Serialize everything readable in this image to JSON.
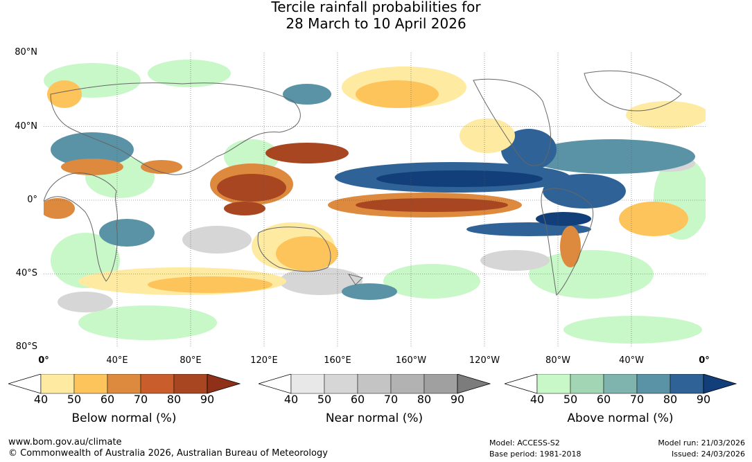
{
  "title": {
    "line1": "Tercile rainfall probabilities for",
    "line2": "28 March to 10 April 2026"
  },
  "map": {
    "lat_labels": [
      "80°N",
      "40°N",
      "0°",
      "40°S",
      "80°S"
    ],
    "lon_labels": [
      "0°",
      "40°E",
      "80°E",
      "120°E",
      "160°E",
      "160°W",
      "120°W",
      "80°W",
      "40°W",
      "0°"
    ]
  },
  "legends": {
    "below": {
      "title": "Below normal (%)",
      "ticks": [
        "40",
        "50",
        "60",
        "70",
        "80",
        "90"
      ],
      "colors": [
        "#ffffff",
        "#feeaa0",
        "#fec45c",
        "#dd8a3f",
        "#c95d2c",
        "#a94622",
        "#8f3118"
      ]
    },
    "near": {
      "title": "Near normal (%)",
      "ticks": [
        "40",
        "50",
        "60",
        "70",
        "80",
        "90"
      ],
      "colors": [
        "#ffffff",
        "#e8e8e8",
        "#d6d6d6",
        "#c4c4c4",
        "#b2b2b2",
        "#a0a0a0",
        "#7c7c7c"
      ]
    },
    "above": {
      "title": "Above normal (%)",
      "ticks": [
        "40",
        "50",
        "60",
        "70",
        "80",
        "90"
      ],
      "colors": [
        "#ffffff",
        "#c8f7c8",
        "#a2d5b3",
        "#7eb3ae",
        "#5a93a6",
        "#2f6296",
        "#123f7a"
      ]
    }
  },
  "footer": {
    "url": "www.bom.gov.au/climate",
    "copyright": "© Commonwealth of Australia 2026, Australian Bureau of Meteorology",
    "model": "Model: ACCESS-S2",
    "base_period": "Base period: 1981-2018",
    "model_run": "Model run: 21/03/2026",
    "issued": "Issued: 24/03/2026"
  }
}
